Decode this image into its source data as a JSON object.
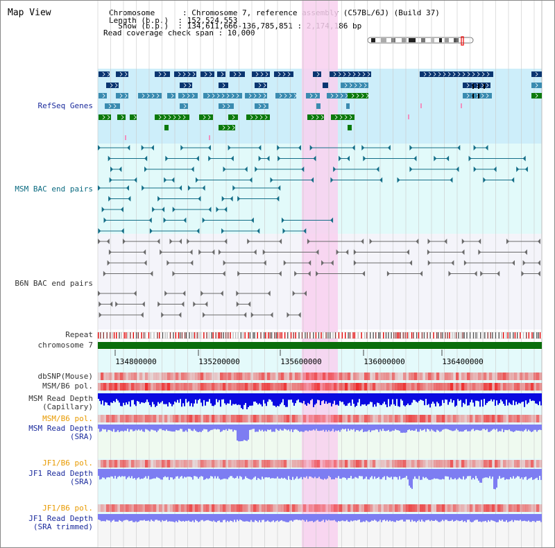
{
  "header": {
    "title": "Map View",
    "info_lines": [
      "Chromosome      : Chromosome 7, reference assembly (C57BL/6J) (Build 37)",
      "Length (b.p.)  : 152,524,553",
      "  Show (b.p.)  : 134,611,666-136,785,851 : 2,174,186 bp",
      "Read coverage check span : 10,000"
    ]
  },
  "tracks": {
    "refseq": "RefSeq Genes",
    "msm_bac": "MSM BAC end pairs",
    "b6n_bac": "B6N BAC end pairs",
    "repeat": "Repeat",
    "chromosome": "chromosome 7",
    "dbsnp": "dbSNP(Mouse)",
    "msm_b6_pol_1": "MSM/B6 pol.",
    "msm_depth_cap_1": "MSM Read Depth",
    "msm_depth_cap_2": "(Capillary)",
    "msm_b6_pol_2": "MSM/B6 pol.",
    "msm_depth_sra_1": "MSM Read Depth",
    "msm_depth_sra_2": "(SRA)",
    "jf1_b6_pol_1": "JF1/B6 pol.",
    "jf1_depth_sra_1": "JF1 Read Depth",
    "jf1_depth_sra_2": "(SRA)",
    "jf1_b6_pol_2": "JF1/B6 pol.",
    "jf1_depth_trim_1": "JF1 Read Depth",
    "jf1_depth_trim_2": "(SRA trimmed)"
  },
  "axis": {
    "ticks": [
      "134800000",
      "135200000",
      "135600000",
      "136000000",
      "136400000"
    ]
  },
  "colors": {
    "label_blue": "#1a2a9c",
    "label_dark": "#333333",
    "label_orange": "#e89a00",
    "highlight": "#f8d0ef",
    "refseq_bg": "#cdeefa",
    "bac_bg": "#e2fafa",
    "gene_navy": "#0a3570",
    "gene_steel": "#3a8bb0",
    "gene_green": "#0c7a0c",
    "chrom_green": "#0b6e0b",
    "msm_blue": "#0a0ae0",
    "sra_blue": "#7d7df2"
  }
}
